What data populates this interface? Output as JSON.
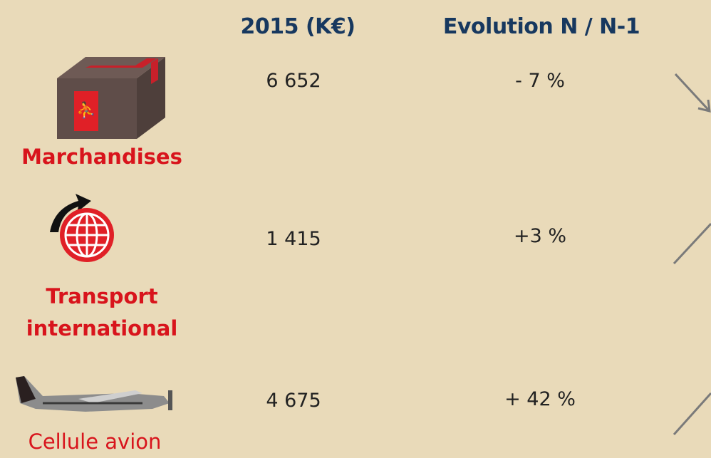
{
  "header": {
    "columns": [
      "2015 (K€)",
      "Evolution N / N-1"
    ]
  },
  "table": {
    "rows": [
      {
        "label": [
          "Marchandises"
        ],
        "value": "6 652",
        "evolution": "- 7 %"
      },
      {
        "label": [
          "Transport",
          "international"
        ],
        "value": "1 415",
        "evolution": "+3 %"
      },
      {
        "label": [
          "Cellule avion"
        ],
        "value": "4 675",
        "evolution": "+ 42 %"
      }
    ]
  }
}
